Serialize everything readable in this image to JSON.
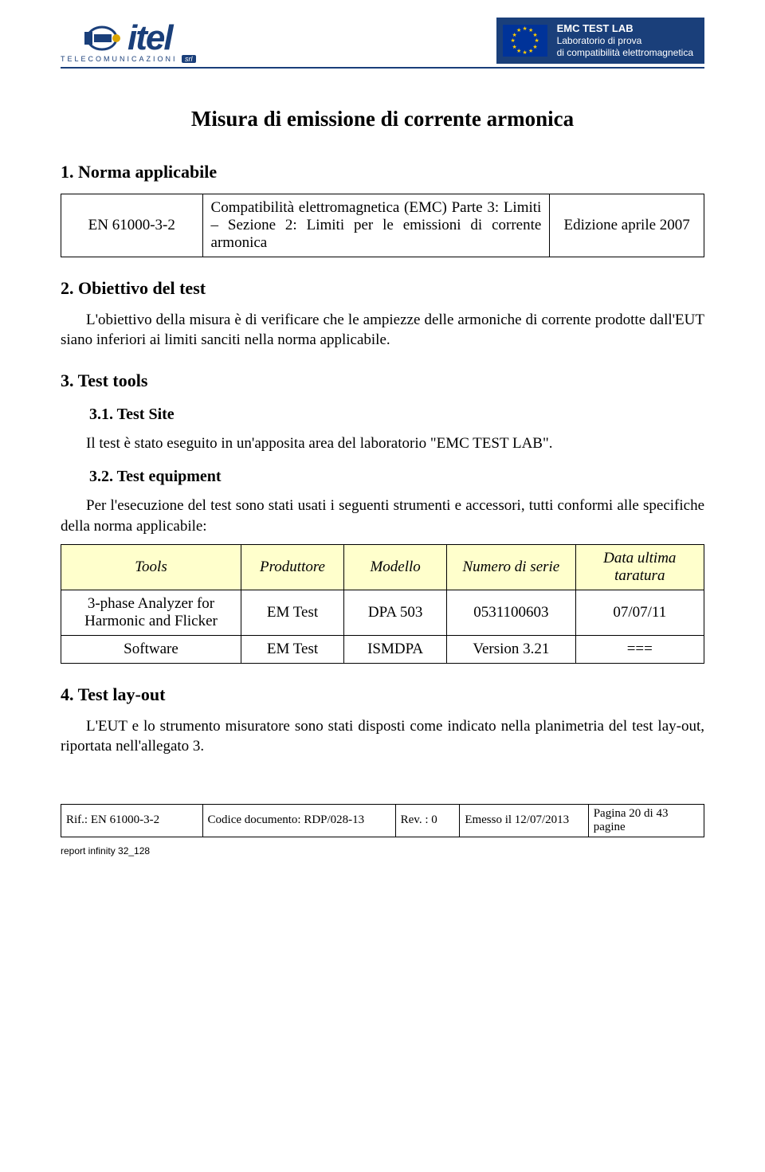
{
  "header": {
    "logo_name": "itel",
    "logo_sub_a": "TELECOMUNICAZIONI",
    "logo_sub_b": "srl",
    "right_line1": "EMC TEST LAB",
    "right_line2": "Laboratorio di prova",
    "right_line3": "di compatibilità elettromagnetica"
  },
  "title": "Misura di emissione di corrente armonica",
  "section1": {
    "heading": "1.  Norma applicabile",
    "table": {
      "c1": "EN 61000-3-2",
      "c2": "Compatibilità elettromagnetica (EMC) Parte 3: Limiti – Sezione 2: Limiti per le emissioni di corrente armonica",
      "c3": "Edizione aprile 2007"
    }
  },
  "section2": {
    "heading": "2.  Obiettivo del test",
    "para": "L'obiettivo della misura è di verificare che le ampiezze delle armoniche di corrente prodotte dall'EUT siano inferiori ai limiti sanciti nella norma applicabile."
  },
  "section3": {
    "heading": "3.  Test tools",
    "sub1": {
      "heading": "3.1.   Test Site",
      "para": "Il test è stato eseguito in un'apposita area del laboratorio \"EMC TEST LAB\"."
    },
    "sub2": {
      "heading": "3.2.   Test equipment",
      "para": "Per l'esecuzione del test sono stati usati i seguenti strumenti e accessori, tutti conformi alle specifiche della norma applicabile:"
    },
    "tools_table": {
      "headers": [
        "Tools",
        "Produttore",
        "Modello",
        "Numero di serie",
        "Data ultima taratura"
      ],
      "header_bg": "#ffffcc",
      "rows": [
        [
          "3-phase Analyzer for Harmonic and Flicker",
          "EM Test",
          "DPA 503",
          "0531100603",
          "07/07/11"
        ],
        [
          "Software",
          "EM Test",
          "ISMDPA",
          "Version 3.21",
          "==="
        ]
      ],
      "col_widths": [
        "28%",
        "16%",
        "16%",
        "20%",
        "20%"
      ]
    }
  },
  "section4": {
    "heading": "4.  Test lay-out",
    "para": "L'EUT e lo strumento misuratore sono stati disposti come indicato nella planimetria del test lay-out, riportata nell'allegato 3."
  },
  "footer": {
    "cells": [
      "Rif.: EN 61000-3-2",
      "Codice documento: RDP/028-13",
      "Rev. : 0",
      "Emesso il 12/07/2013",
      "Pagina 20 di 43 pagine"
    ],
    "col_widths": [
      "22%",
      "30%",
      "10%",
      "20%",
      "18%"
    ],
    "note": "report infinity 32_128"
  },
  "colors": {
    "brand": "#1a3f7a",
    "header_bg": "#1a3f7a",
    "table_header_bg": "#ffffcc",
    "eu_flag_bg": "#003399",
    "eu_star": "#ffcc00"
  }
}
